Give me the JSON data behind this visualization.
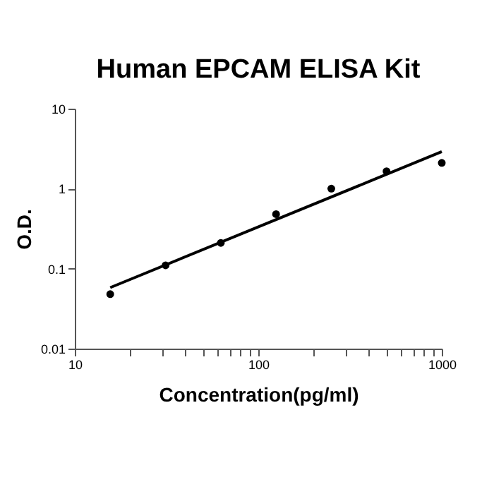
{
  "chart_data": {
    "type": "scatter",
    "title": "Human EPCAM ELISA Kit",
    "xlabel": "Concentration(pg/ml)",
    "ylabel": "O.D.",
    "log": "xy",
    "grid": false,
    "marker": "circle",
    "xlim": [
      10,
      1000
    ],
    "ylim": [
      0.01,
      10
    ],
    "xticks": [
      10,
      {
        "value": 20,
        "label": null
      },
      {
        "value": 30,
        "label": null
      },
      {
        "value": 40,
        "label": null
      },
      {
        "value": 50,
        "label": null
      },
      {
        "value": 60,
        "label": null
      },
      {
        "value": 70,
        "label": null
      },
      {
        "value": 80,
        "label": null
      },
      {
        "value": 90,
        "label": null
      },
      100,
      {
        "value": 200,
        "label": null
      },
      {
        "value": 300,
        "label": null
      },
      {
        "value": 400,
        "label": null
      },
      {
        "value": 500,
        "label": null
      },
      {
        "value": 600,
        "label": null
      },
      {
        "value": 700,
        "label": null
      },
      {
        "value": 800,
        "label": null
      },
      {
        "value": 900,
        "label": null
      },
      1000
    ],
    "yticks": [
      0.01,
      0.1,
      1,
      10
    ],
    "series": [
      {
        "color": "#000000",
        "x": [
          15.6,
          31.25,
          62.5,
          125,
          250,
          500,
          1000
        ],
        "values": [
          0.048,
          0.11,
          0.21,
          0.48,
          1.0,
          1.65,
          2.1
        ]
      },
      {
        "type": "line",
        "marker": "none",
        "color": "#000000",
        "x": [
          15.6,
          1000
        ],
        "values": [
          0.058,
          2.9
        ]
      }
    ]
  }
}
